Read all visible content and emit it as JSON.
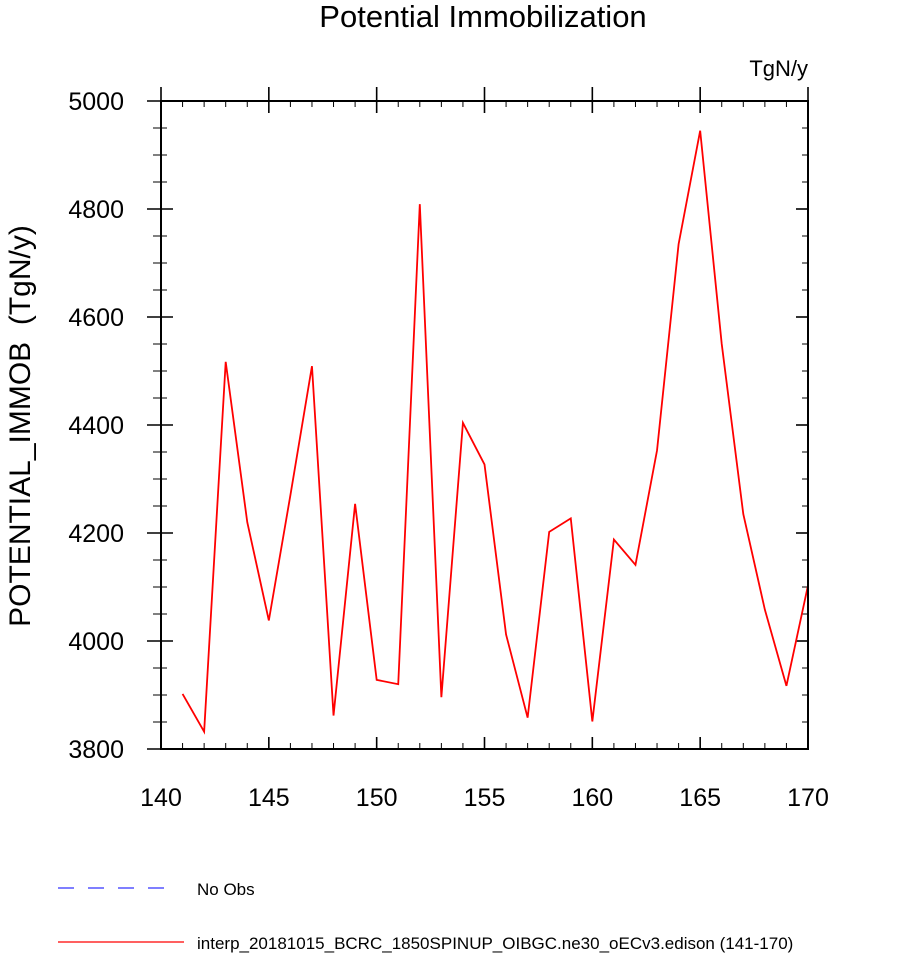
{
  "chart_data": {
    "type": "line",
    "title": "Potential Immobilization",
    "units_label": "TgN/y",
    "ylabel": "POTENTIAL_IMMOB  (TgN/y)",
    "xlabel": "",
    "xlim": [
      140,
      170
    ],
    "ylim": [
      3800,
      5000
    ],
    "x_ticks": [
      140,
      145,
      150,
      155,
      160,
      165,
      170
    ],
    "y_ticks": [
      3800,
      4000,
      4200,
      4400,
      4600,
      4800,
      5000
    ],
    "x_tick_labels": [
      "140",
      "145",
      "150",
      "155",
      "160",
      "165",
      "170"
    ],
    "y_tick_labels": [
      "3800",
      "4000",
      "4200",
      "4400",
      "4600",
      "4800",
      "5000"
    ],
    "grid": false,
    "series": [
      {
        "name": "interp_20181015_BCRC_1850SPINUP_OIBGC.ne30_oECv3.edison (141-170)",
        "color": "#ff0000",
        "x": [
          141,
          142,
          143,
          144,
          145,
          146,
          147,
          148,
          149,
          150,
          151,
          152,
          153,
          154,
          155,
          156,
          157,
          158,
          159,
          160,
          161,
          162,
          163,
          164,
          165,
          166,
          167,
          168,
          169,
          170
        ],
        "values": [
          3902,
          3832,
          4517,
          4220,
          4038,
          4270,
          4509,
          3862,
          4254,
          3928,
          3920,
          4809,
          3896,
          4404,
          4327,
          4012,
          3858,
          4202,
          4227,
          3851,
          4188,
          4141,
          4353,
          4735,
          4945,
          4550,
          4235,
          4058,
          3917,
          4103
        ]
      }
    ],
    "legend": {
      "placement": "bottom",
      "entries": [
        {
          "label": "No Obs",
          "color": "#3333ff",
          "style": "dashed"
        },
        {
          "label": "interp_20181015_BCRC_1850SPINUP_OIBGC.ne30_oECv3.edison (141-170)",
          "color": "#ff0000",
          "style": "solid"
        }
      ]
    }
  }
}
